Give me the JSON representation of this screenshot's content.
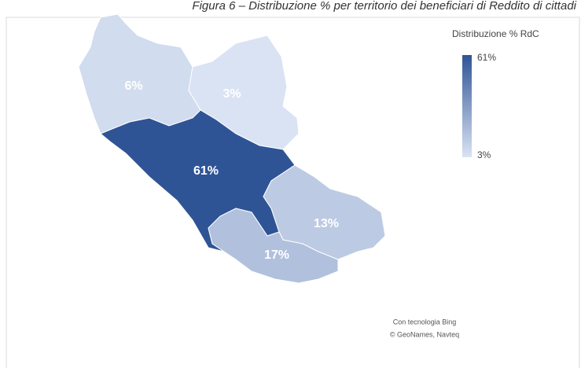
{
  "chart_data": {
    "type": "choropleth",
    "title": "Figura 6 – Distribuzione % per territorio dei beneficiari di Reddito di cittadi",
    "values": [
      6,
      3,
      61,
      13,
      17
    ],
    "value_labels": [
      "6%",
      "3%",
      "61%",
      "13%",
      "17%"
    ],
    "color_range": [
      "#dae3f3",
      "#2f5496"
    ],
    "legend": {
      "title": "Distribuzione % RdC",
      "max": {
        "value": 61,
        "label": "61%"
      },
      "min": {
        "value": 3,
        "label": "3%"
      }
    },
    "attribution": [
      "Con tecnologia Bing",
      "© GeoNames, Navteq"
    ]
  }
}
